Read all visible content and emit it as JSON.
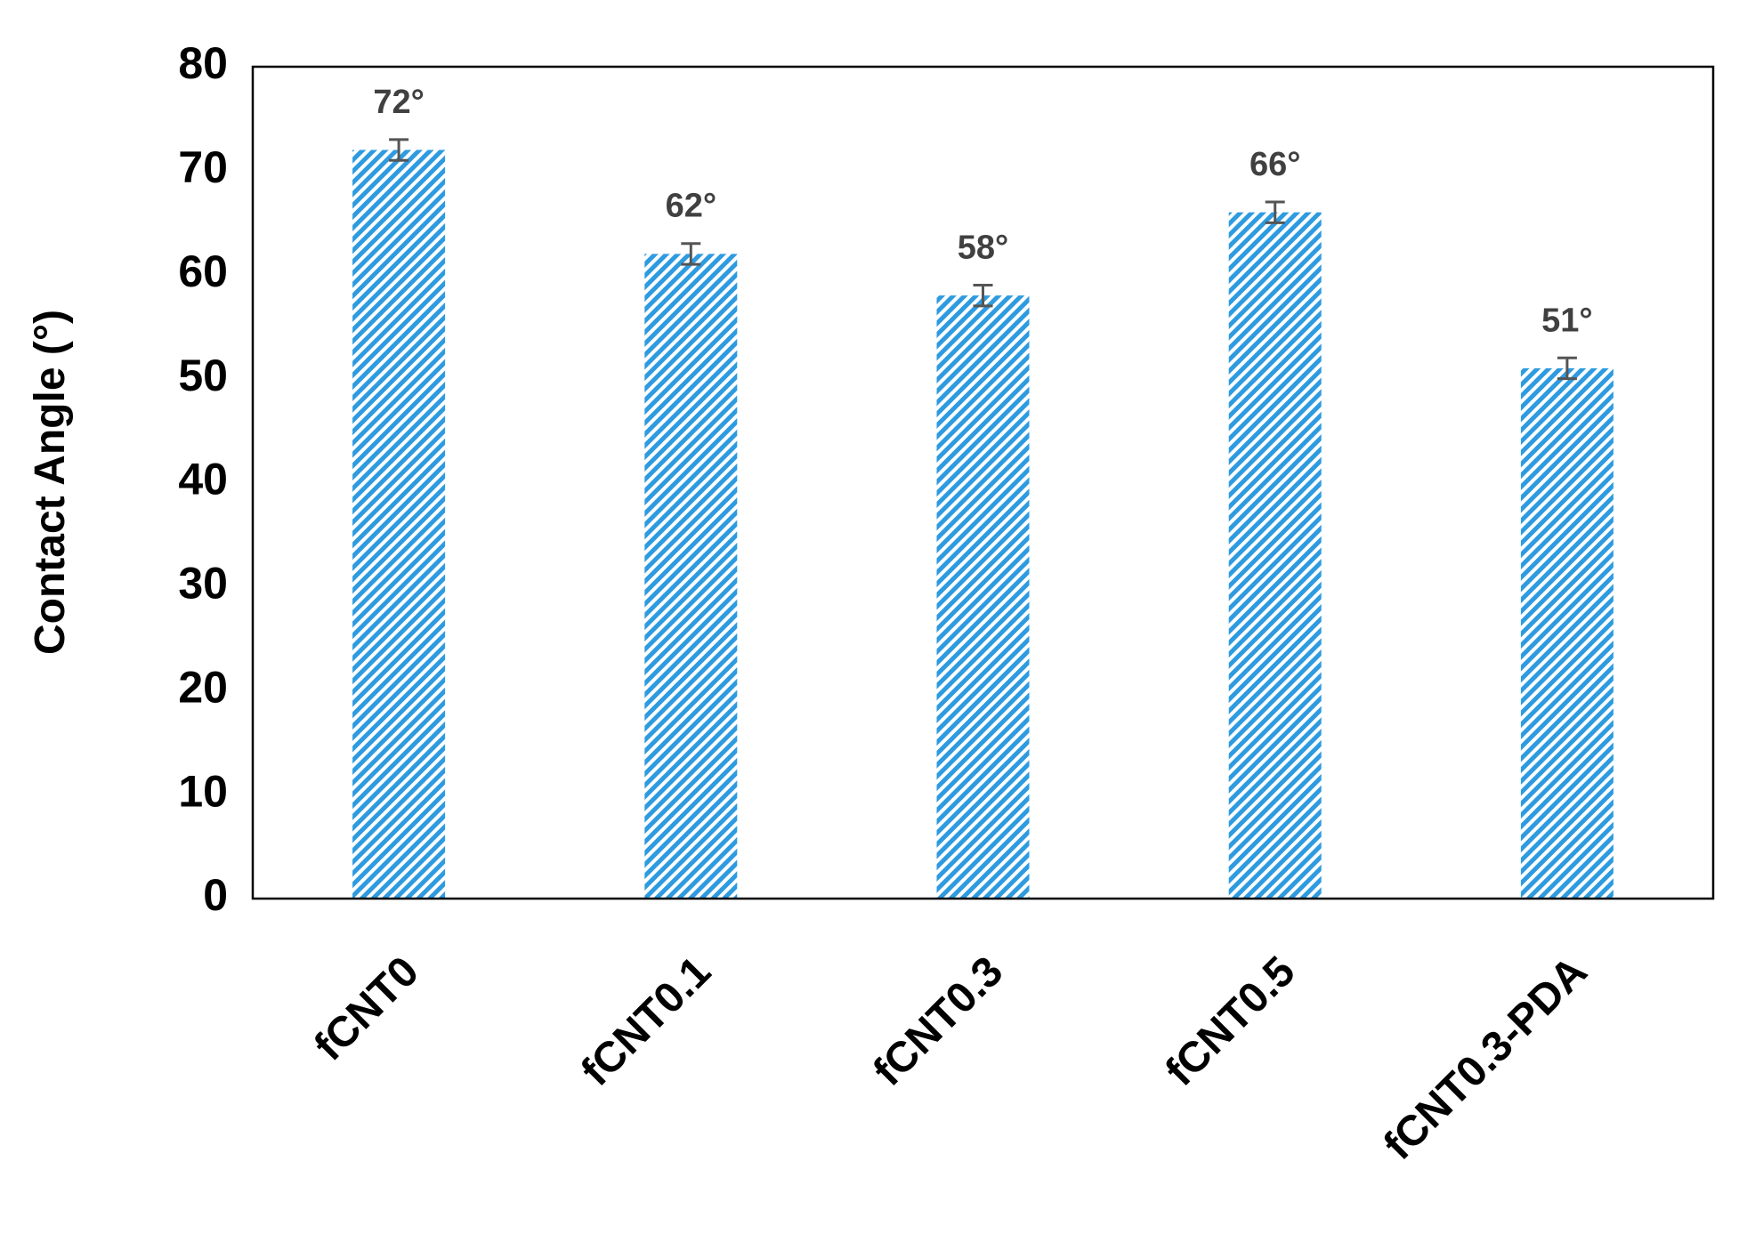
{
  "chart_data": {
    "type": "bar",
    "y_label": "Contact Angle (°)",
    "categories": [
      "fCNT0",
      "fCNT0.1",
      "fCNT0.3",
      "fCNT0.5",
      "fCNT0.3-PDA"
    ],
    "values": [
      72,
      62,
      58,
      66,
      51
    ],
    "value_labels": [
      "72°",
      "62°",
      "58°",
      "66°",
      "51°"
    ],
    "errors": [
      1,
      1,
      1,
      1,
      1
    ],
    "color": "#2e9be0",
    "ylim": [
      0,
      80
    ],
    "yticks": [
      0,
      10,
      20,
      30,
      40,
      50,
      60,
      70,
      80
    ],
    "grid": false
  }
}
